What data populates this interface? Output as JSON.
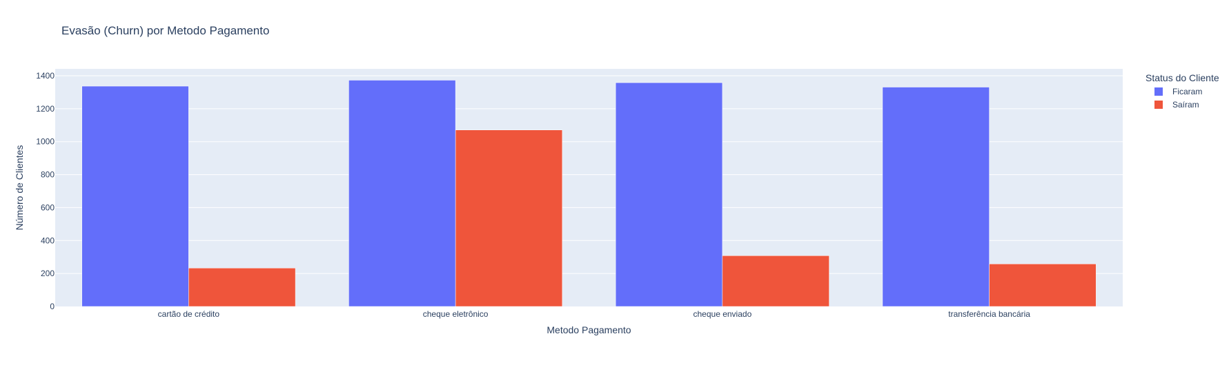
{
  "chart_data": {
    "type": "bar",
    "title": "Evasão (Churn) por Metodo Pagamento",
    "xlabel": "Metodo Pagamento",
    "ylabel": "Número de Clientes",
    "categories": [
      "cartão de crédito",
      "cheque eletrônico",
      "cheque enviado",
      "transferência bancária"
    ],
    "ylim": [
      0,
      1400
    ],
    "yticks": [
      0,
      200,
      400,
      600,
      800,
      1000,
      1200,
      1400
    ],
    "grid": true,
    "legend": {
      "title": "Status do Cliente",
      "position": "top-right"
    },
    "series": [
      {
        "name": "Ficaram",
        "color": "#636efa",
        "values": [
          1337,
          1373,
          1358,
          1331
        ]
      },
      {
        "name": "Saíram",
        "color": "#ef553b",
        "values": [
          233,
          1071,
          308,
          258
        ]
      }
    ]
  }
}
